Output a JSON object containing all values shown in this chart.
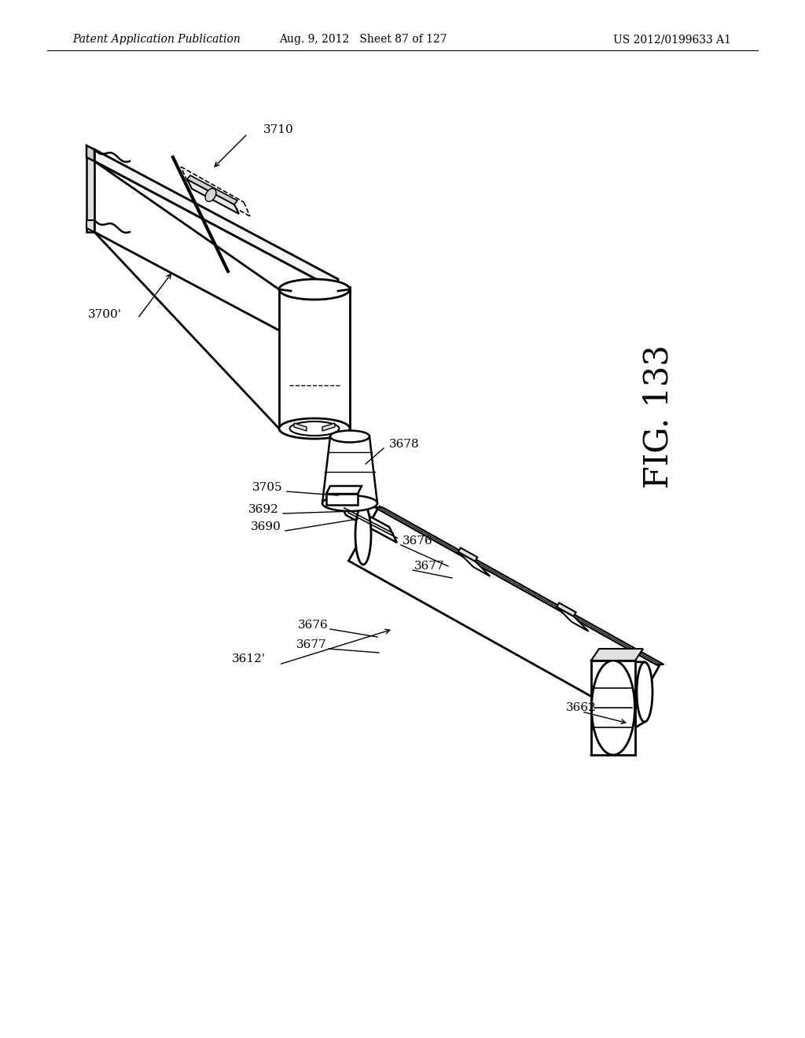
{
  "bg_color": "#ffffff",
  "line_color": "#000000",
  "header_left": "Patent Application Publication",
  "header_mid": "Aug. 9, 2012   Sheet 87 of 127",
  "header_right": "US 2012/0199633 A1",
  "fig_label": "FIG. 133",
  "title_fontsize": 10,
  "fig_fontsize": 30,
  "label_fontsize": 11
}
